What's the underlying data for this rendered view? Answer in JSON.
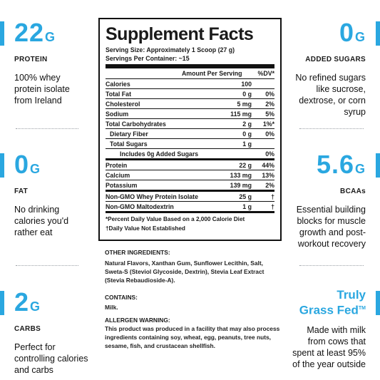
{
  "left": [
    {
      "value": "22",
      "unit": "G",
      "caption": "PROTEIN",
      "desc": [
        "100% whey",
        "protein isolate",
        "from Ireland"
      ]
    },
    {
      "value": "0",
      "unit": "G",
      "caption": "FAT",
      "desc": [
        "No drinking",
        "calories you'd",
        "rather eat"
      ]
    },
    {
      "value": "2",
      "unit": "G",
      "caption": "CARBS",
      "desc": [
        "Perfect for",
        "controlling calories",
        "and carbs"
      ]
    }
  ],
  "right": [
    {
      "value": "0",
      "unit": "G",
      "caption": "ADDED SUGARS",
      "desc": [
        "No refined sugars",
        "like sucrose,",
        "dextrose, or corn",
        "syrup"
      ]
    },
    {
      "value": "5.6",
      "unit": "G",
      "caption": "BCAAs",
      "desc": [
        "Essential building",
        "blocks for muscle",
        "growth and post-",
        "workout recovery"
      ]
    },
    {
      "title1": "Truly",
      "title2": "Grass Fed",
      "tm": "TM",
      "desc": [
        "Made with milk",
        "from cows that",
        "spent at least 95%",
        "of the year outside"
      ]
    }
  ],
  "label": {
    "title": "Supplement Facts",
    "serving_size": "Serving Size: Approximately 1 Scoop (27 g)",
    "servings": "Servings Per Container: ~15",
    "col_amount": "Amount Per Serving",
    "col_dv": "%DV*",
    "rows": [
      {
        "name": "Calories",
        "amount": "100",
        "dv": ""
      },
      {
        "name": "Total Fat",
        "amount": "0 g",
        "dv": "0%"
      },
      {
        "name": "Cholesterol",
        "amount": "5 mg",
        "dv": "2%"
      },
      {
        "name": "Sodium",
        "amount": "115 mg",
        "dv": "5%"
      },
      {
        "name": "Total Carbohydrates",
        "amount": "2 g",
        "dv": "1%*"
      },
      {
        "name": "Dietary Fiber",
        "amount": "0 g",
        "dv": "0%",
        "indent": 1
      },
      {
        "name": "Total Sugars",
        "amount": "1 g",
        "dv": "",
        "indent": 1
      },
      {
        "name": "Includes 0g Added Sugars",
        "amount": "",
        "dv": "0%",
        "indent": 2
      },
      {
        "name": "Protein",
        "amount": "22 g",
        "dv": "44%",
        "thick": true
      },
      {
        "name": "Calcium",
        "amount": "133 mg",
        "dv": "13%"
      },
      {
        "name": "Potassium",
        "amount": "139 mg",
        "dv": "2%"
      },
      {
        "name": "Non-GMO Whey Protein Isolate",
        "amount": "25 g",
        "dv": "†",
        "thick": true
      },
      {
        "name": "Non-GMO Maltodextrin",
        "amount": "1 g",
        "dv": "†"
      }
    ],
    "foot1": "*Percent Daily Value Based on a 2,000 Calorie Diet",
    "foot2": "†Daily Value Not Established"
  },
  "ingredients": {
    "other_h": "OTHER INGREDIENTS:",
    "other": "Natural Flavors, Xanthan Gum, Sunflower Lecithin, Salt, Sweta-S (Steviol Glycoside, Dextrin), Stevia Leaf Extract (Stevia Rebaudioside-A).",
    "contains_h": "CONTAINS:",
    "contains": "Milk.",
    "allergen_h": "ALLERGEN WARNING:",
    "allergen": "This product was produced in a facility that may also process ingredients containing soy, wheat, egg, peanuts, tree nuts, sesame, fish, and crustacean shellfish."
  },
  "colors": {
    "accent": "#2aa7e0",
    "text": "#1a1a1a"
  }
}
